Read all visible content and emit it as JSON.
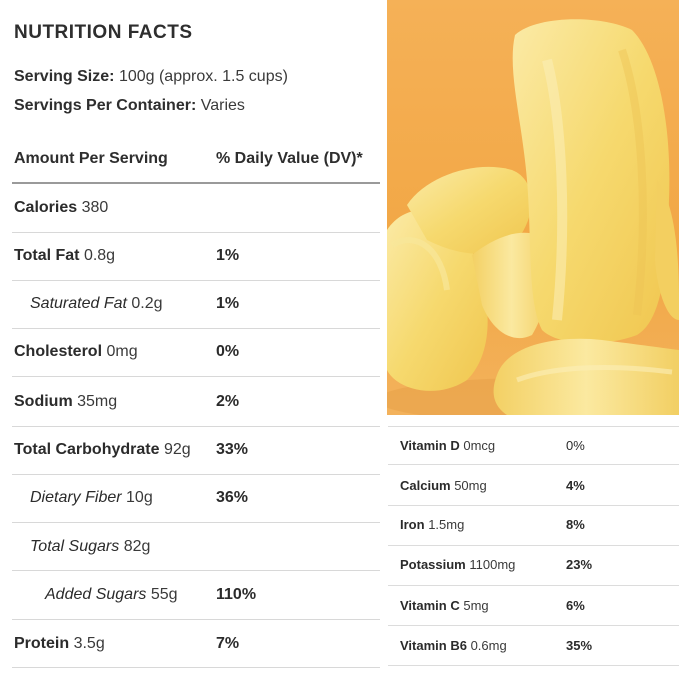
{
  "title": "NUTRITION FACTS",
  "serving": {
    "size_label": "Serving Size:",
    "size_value": "100g (approx. 1.5 cups)",
    "per_container_label": "Servings Per Container:",
    "per_container_value": "Varies"
  },
  "header": {
    "amount_label": "Amount Per Serving",
    "dv_label": "% Daily Value (DV)*"
  },
  "rows": [
    {
      "name": "Calories",
      "qty": "380",
      "dv": ""
    },
    {
      "name": "Total Fat",
      "qty": "0.8g",
      "dv": "1%"
    },
    {
      "name": "Saturated Fat",
      "qty": "0.2g",
      "dv": "1%"
    },
    {
      "name": "Cholesterol",
      "qty": "0mg",
      "dv": "0%"
    },
    {
      "name": "Sodium",
      "qty": "35mg",
      "dv": "2%"
    },
    {
      "name": "Total Carbohydrate",
      "qty": "92g",
      "dv": "33%"
    },
    {
      "name": "Dietary Fiber",
      "qty": "10g",
      "dv": "36%"
    },
    {
      "name": "Total Sugars",
      "qty": "82g",
      "dv": ""
    },
    {
      "name": "Added Sugars",
      "qty": "55g",
      "dv": "110%"
    },
    {
      "name": "Protein",
      "qty": "3.5g",
      "dv": "7%"
    }
  ],
  "vitamins": [
    {
      "name": "Vitamin D",
      "qty": "0mcg",
      "dv": "0%"
    },
    {
      "name": "Calcium",
      "qty": "50mg",
      "dv": "4%"
    },
    {
      "name": "Iron",
      "qty": "1.5mg",
      "dv": "8%"
    },
    {
      "name": "Potassium",
      "qty": "1100mg",
      "dv": "23%"
    },
    {
      "name": "Vitamin C",
      "qty": "5mg",
      "dv": "6%"
    },
    {
      "name": "Vitamin B6",
      "qty": "0.6mg",
      "dv": "35%"
    }
  ],
  "colors": {
    "background_orange": "#f2a94a",
    "fruit_yellow": "#f7df84"
  }
}
